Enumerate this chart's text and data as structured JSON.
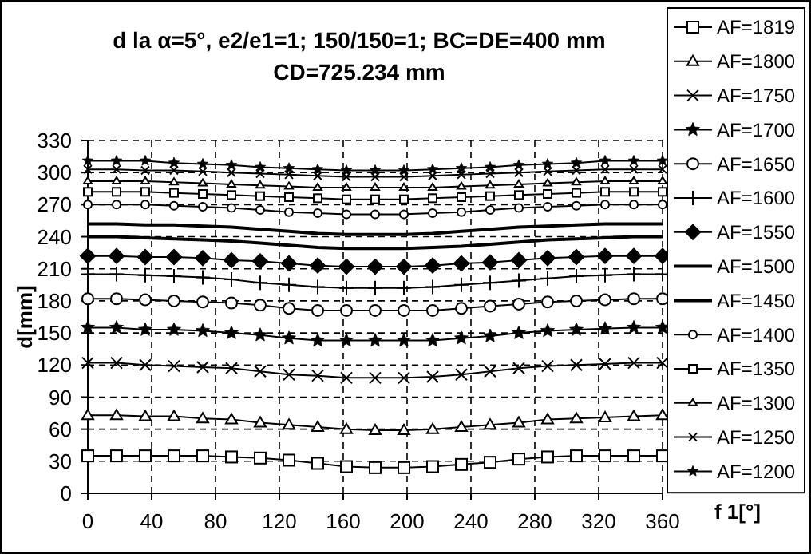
{
  "chart_data": {
    "type": "line",
    "title": "d la α=5°, e2/e1=1; 150/150=1; BC=DE=400 mm",
    "subtitle": "CD=725.234 mm",
    "xlabel": "f 1[°]",
    "ylabel": "d[mm]",
    "x": [
      0,
      18,
      36,
      54,
      72,
      90,
      108,
      126,
      144,
      162,
      180,
      198,
      216,
      234,
      252,
      270,
      288,
      306,
      324,
      342,
      360
    ],
    "xlim": [
      0,
      360
    ],
    "xticks": [
      0,
      40,
      80,
      120,
      160,
      200,
      240,
      280,
      320,
      360
    ],
    "ylim": [
      0,
      330
    ],
    "yticks": [
      0,
      30,
      60,
      90,
      120,
      150,
      180,
      210,
      240,
      270,
      300,
      330
    ],
    "grid": true,
    "legend": "right",
    "series": [
      {
        "name": "AF=1819",
        "color": "#000000",
        "marker": "square",
        "values": [
          35,
          35,
          35,
          35,
          35,
          34,
          33,
          31,
          28,
          25,
          24,
          24,
          25,
          27,
          29,
          32,
          34,
          35,
          35,
          35,
          35
        ]
      },
      {
        "name": "AF=1800",
        "color": "#000000",
        "marker": "triangle",
        "values": [
          73,
          73,
          72,
          72,
          70,
          69,
          66,
          64,
          62,
          60,
          59,
          59,
          60,
          62,
          64,
          66,
          69,
          70,
          71,
          72,
          73
        ]
      },
      {
        "name": "AF=1750",
        "color": "#000000",
        "marker": "cross",
        "values": [
          122,
          122,
          120,
          119,
          118,
          117,
          114,
          111,
          110,
          108,
          108,
          108,
          109,
          111,
          114,
          117,
          119,
          120,
          121,
          122,
          122
        ]
      },
      {
        "name": "AF=1700",
        "color": "#000000",
        "marker": "star",
        "values": [
          155,
          155,
          153,
          153,
          152,
          150,
          148,
          145,
          143,
          143,
          143,
          143,
          143,
          145,
          147,
          150,
          152,
          153,
          154,
          155,
          155
        ]
      },
      {
        "name": "AF=1650",
        "color": "#000000",
        "marker": "circle",
        "values": [
          182,
          182,
          181,
          180,
          179,
          178,
          176,
          173,
          171,
          171,
          171,
          171,
          171,
          173,
          175,
          177,
          179,
          180,
          181,
          182,
          182
        ]
      },
      {
        "name": "AF=1600",
        "color": "#000000",
        "marker": "plus",
        "values": [
          205,
          205,
          204,
          203,
          202,
          200,
          197,
          195,
          193,
          192,
          192,
          192,
          193,
          195,
          197,
          199,
          201,
          203,
          204,
          205,
          205
        ]
      },
      {
        "name": "AF=1550",
        "color": "#000000",
        "marker": "diamond",
        "values": [
          222,
          222,
          221,
          221,
          220,
          218,
          217,
          215,
          213,
          212,
          212,
          212,
          213,
          215,
          216,
          218,
          220,
          221,
          222,
          222,
          222
        ]
      },
      {
        "name": "AF=1500",
        "color": "#000000",
        "marker": "none",
        "values": [
          240,
          240,
          239,
          238,
          237,
          236,
          234,
          232,
          230,
          229,
          229,
          229,
          230,
          231,
          233,
          235,
          237,
          238,
          239,
          240,
          240
        ]
      },
      {
        "name": "AF=1450",
        "color": "#000000",
        "marker": "none",
        "values": [
          252,
          252,
          251,
          251,
          250,
          249,
          247,
          245,
          243,
          242,
          242,
          242,
          243,
          245,
          247,
          249,
          250,
          251,
          252,
          252,
          252
        ]
      },
      {
        "name": "AF=1400",
        "color": "#000000",
        "marker": "circle",
        "values": [
          270,
          270,
          270,
          269,
          268,
          267,
          265,
          263,
          262,
          261,
          261,
          261,
          262,
          263,
          265,
          267,
          268,
          269,
          270,
          270,
          270
        ]
      },
      {
        "name": "AF=1350",
        "color": "#000000",
        "marker": "square",
        "values": [
          282,
          282,
          282,
          281,
          280,
          279,
          278,
          277,
          276,
          275,
          275,
          275,
          276,
          277,
          278,
          279,
          280,
          281,
          282,
          282,
          282
        ]
      },
      {
        "name": "AF=1300",
        "color": "#000000",
        "marker": "triangle",
        "values": [
          292,
          292,
          292,
          291,
          290,
          289,
          288,
          287,
          286,
          286,
          286,
          286,
          286,
          287,
          288,
          289,
          290,
          291,
          292,
          292,
          292
        ]
      },
      {
        "name": "AF=1250",
        "color": "#000000",
        "marker": "cross",
        "values": [
          303,
          303,
          302,
          302,
          301,
          300,
          299,
          298,
          297,
          296,
          296,
          296,
          297,
          298,
          299,
          300,
          301,
          302,
          303,
          303,
          303
        ]
      },
      {
        "name": "AF=1200",
        "color": "#000000",
        "marker": "star",
        "values": [
          311,
          311,
          311,
          309,
          308,
          307,
          305,
          304,
          303,
          302,
          302,
          302,
          303,
          304,
          305,
          307,
          308,
          309,
          311,
          311,
          311
        ]
      }
    ]
  }
}
